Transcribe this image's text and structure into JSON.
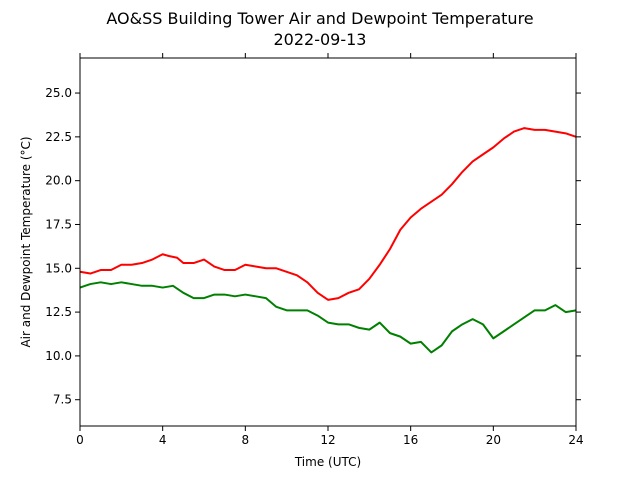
{
  "chart_data": {
    "type": "line",
    "title": "AO&SS Building Tower Air and Dewpoint Temperature",
    "subtitle": "2022-09-13",
    "xlabel": "Time (UTC)",
    "ylabel": "Air and Dewpoint Temperature (°C)",
    "xlim": [
      0,
      24
    ],
    "ylim": [
      6.0,
      27.0
    ],
    "x_ticks": [
      0,
      4,
      8,
      12,
      16,
      20,
      24
    ],
    "x_tick_labels": [
      "0",
      "4",
      "8",
      "12",
      "16",
      "20",
      "24"
    ],
    "y_ticks": [
      7.5,
      10.0,
      12.5,
      15.0,
      17.5,
      20.0,
      22.5,
      25.0
    ],
    "y_tick_labels": [
      "7.5",
      "10.0",
      "12.5",
      "15.0",
      "17.5",
      "20.0",
      "22.5",
      "25.0"
    ],
    "grid": false,
    "series": [
      {
        "color": "#ff0000",
        "x": [
          0,
          0.5,
          1,
          1.5,
          2,
          2.5,
          3,
          3.5,
          4,
          4.3,
          4.7,
          5,
          5.5,
          6,
          6.5,
          7,
          7.5,
          8,
          8.5,
          9,
          9.5,
          10,
          10.5,
          11,
          11.5,
          12,
          12.5,
          13,
          13.5,
          14,
          14.5,
          15,
          15.5,
          16,
          16.5,
          17,
          17.5,
          18,
          18.5,
          19,
          19.5,
          20,
          20.5,
          21,
          21.5,
          22,
          22.5,
          23,
          23.5,
          24
        ],
        "y": [
          14.8,
          14.7,
          14.9,
          14.9,
          15.2,
          15.2,
          15.3,
          15.5,
          15.8,
          15.7,
          15.6,
          15.3,
          15.3,
          15.5,
          15.1,
          14.9,
          14.9,
          15.2,
          15.1,
          15.0,
          15.0,
          14.8,
          14.6,
          14.2,
          13.6,
          13.2,
          13.3,
          13.6,
          13.8,
          14.4,
          15.2,
          16.1,
          17.2,
          17.9,
          18.4,
          18.8,
          19.2,
          19.8,
          20.5,
          21.1,
          21.5,
          21.9,
          22.4,
          22.8,
          23.0,
          22.9,
          22.9,
          22.8,
          22.7,
          22.5
        ]
      },
      {
        "color": "#008000",
        "x": [
          0,
          0.5,
          1,
          1.5,
          2,
          2.5,
          3,
          3.5,
          4,
          4.5,
          5,
          5.5,
          6,
          6.5,
          7,
          7.5,
          8,
          8.5,
          9,
          9.5,
          10,
          10.5,
          11,
          11.5,
          12,
          12.5,
          13,
          13.5,
          14,
          14.5,
          15,
          15.5,
          16,
          16.5,
          17,
          17.5,
          18,
          18.5,
          19,
          19.5,
          20,
          20.5,
          21,
          21.5,
          22,
          22.5,
          23,
          23.5,
          24
        ],
        "y": [
          13.9,
          14.1,
          14.2,
          14.1,
          14.2,
          14.1,
          14.0,
          14.0,
          13.9,
          14.0,
          13.6,
          13.3,
          13.3,
          13.5,
          13.5,
          13.4,
          13.5,
          13.4,
          13.3,
          12.8,
          12.6,
          12.6,
          12.6,
          12.3,
          11.9,
          11.8,
          11.8,
          11.6,
          11.5,
          11.9,
          11.3,
          11.1,
          10.7,
          10.8,
          10.2,
          10.6,
          11.4,
          11.8,
          12.1,
          11.8,
          11.0,
          11.4,
          11.8,
          12.2,
          12.6,
          12.6,
          12.9,
          12.5,
          12.6
        ]
      }
    ]
  }
}
